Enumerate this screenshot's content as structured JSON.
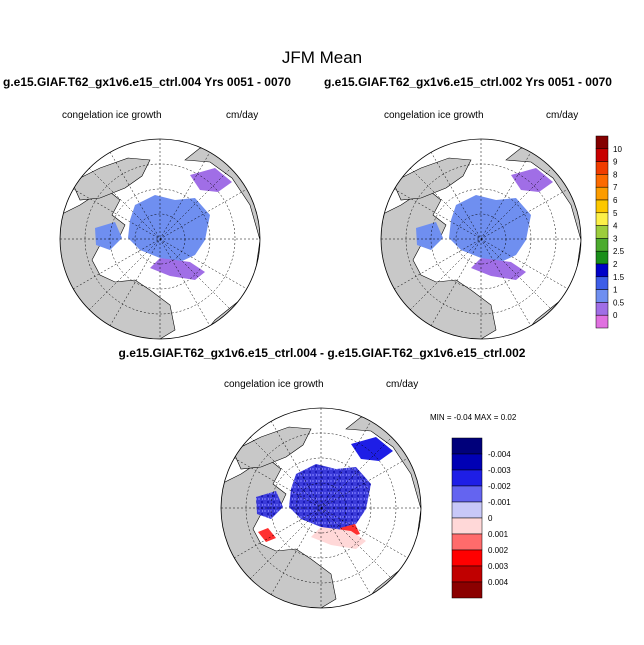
{
  "title": "JFM Mean",
  "panels": {
    "left_case": "g.e15.GIAF.T62_gx1v6.e15_ctrl.004  Yrs 0051 - 0070",
    "right_case": "g.e15.GIAF.T62_gx1v6.e15_ctrl.002  Yrs 0051 - 0070",
    "diff_case": "g.e15.GIAF.T62_gx1v6.e15_ctrl.004 - g.e15.GIAF.T62_gx1v6.e15_ctrl.002",
    "variable": "congelation ice growth",
    "units": "cm/day",
    "minmax": "MIN = -0.04 MAX = 0.02"
  },
  "chart_data": [
    {
      "type": "heatmap",
      "projection": "north-polar-stereographic",
      "title": "g.e15.GIAF.T62_gx1v6.e15_ctrl.004  Yrs 0051 - 0070",
      "variable": "congelation ice growth",
      "units": "cm/day",
      "colorbar": {
        "levels": [
          "0",
          "0.5",
          "1",
          "1.5",
          "2",
          "2.5",
          "3",
          "4",
          "5",
          "6",
          "7",
          "8",
          "9",
          "10"
        ],
        "colors": [
          "#e070e0",
          "#a06ee6",
          "#6f8ff0",
          "#3d5ee8",
          "#0000c8",
          "#1a8f1a",
          "#4cab2e",
          "#9ccd3c",
          "#fcf048",
          "#fcc800",
          "#fc9c00",
          "#fc6a00",
          "#f03c00",
          "#c80000",
          "#840000"
        ]
      },
      "dominant_range": "0.5 - 1.5"
    },
    {
      "type": "heatmap",
      "projection": "north-polar-stereographic",
      "title": "g.e15.GIAF.T62_gx1v6.e15_ctrl.002  Yrs 0051 - 0070",
      "variable": "congelation ice growth",
      "units": "cm/day",
      "colorbar": "shared",
      "dominant_range": "0.5 - 1.5"
    },
    {
      "type": "heatmap",
      "projection": "north-polar-stereographic",
      "title": "g.e15.GIAF.T62_gx1v6.e15_ctrl.004 - g.e15.GIAF.T62_gx1v6.e15_ctrl.002",
      "variable": "congelation ice growth",
      "units": "cm/day",
      "min": -0.04,
      "max": 0.02,
      "colorbar": {
        "levels": [
          "0.004",
          "0.003",
          "0.002",
          "0.001",
          "0",
          "-0.001",
          "-0.002",
          "-0.003",
          "-0.004"
        ],
        "colors": [
          "#8b0000",
          "#c00000",
          "#ff0000",
          "#ff6b6b",
          "#ffd8d8",
          "#c8c8f8",
          "#6464f0",
          "#1e1ee6",
          "#0000b4",
          "#00007a"
        ]
      }
    }
  ],
  "colors": {
    "land": "#c8c8c8",
    "ocean": "#ffffff"
  }
}
